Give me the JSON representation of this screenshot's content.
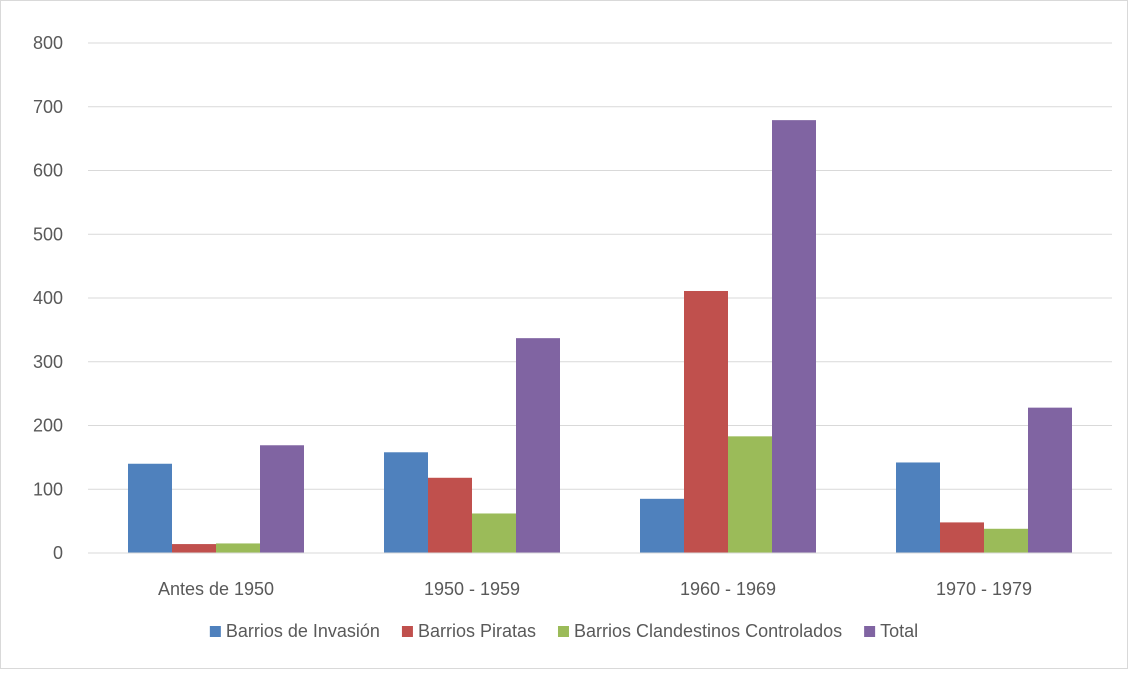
{
  "chart_data": {
    "type": "bar",
    "title": "",
    "xlabel": "",
    "ylabel": "",
    "categories": [
      "Antes de 1950",
      "1950 - 1959",
      "1960 - 1969",
      "1970 - 1979"
    ],
    "series": [
      {
        "name": "Barrios de Invasión",
        "color": "#4f81bd",
        "values": [
          140,
          158,
          85,
          142
        ]
      },
      {
        "name": "Barrios Piratas",
        "color": "#c0504d",
        "values": [
          14,
          118,
          411,
          48
        ]
      },
      {
        "name": "Barrios Clandestinos Controlados",
        "color": "#9bbb59",
        "values": [
          15,
          62,
          183,
          38
        ]
      },
      {
        "name": "Total",
        "color": "#8064a2",
        "values": [
          169,
          337,
          679,
          228
        ]
      }
    ],
    "ylim": [
      0,
      800
    ],
    "yticks": [
      0,
      100,
      200,
      300,
      400,
      500,
      600,
      700,
      800
    ],
    "grid": true,
    "legend_position": "bottom"
  }
}
